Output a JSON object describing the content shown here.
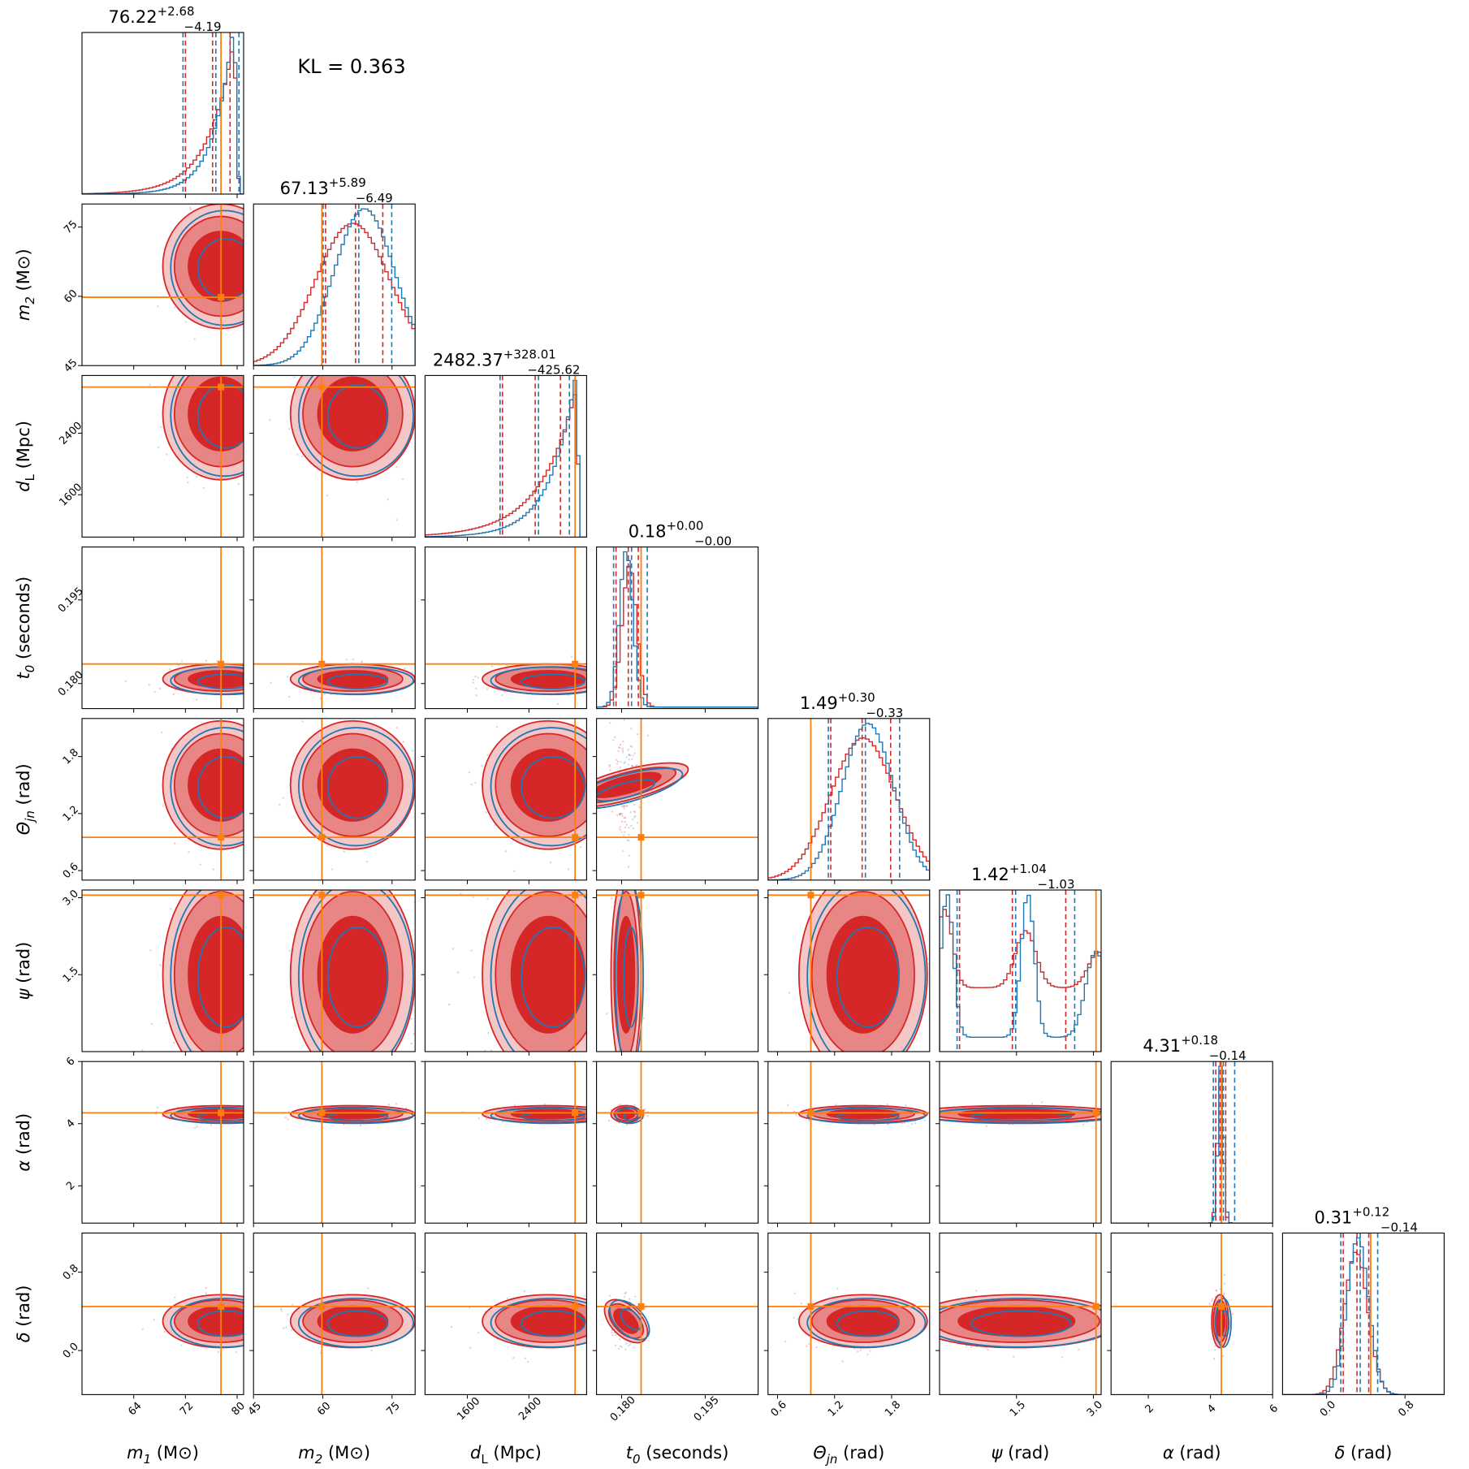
{
  "kl_label": "KL = 0.363",
  "colors": {
    "red": "#d62728",
    "blue": "#1f77b4",
    "orange": "#ff7f0e",
    "red_fill_light": "#f4c6c6",
    "red_fill_mid": "#e88686"
  },
  "chart_data": {
    "type": "corner",
    "series": [
      {
        "name": "",
        "color": "#d62728"
      },
      {
        "name": "",
        "color": "#1f77b4"
      }
    ],
    "parameters": [
      {
        "key": "m1",
        "label_sym": "m",
        "label_sub": "1",
        "label_unit": "(M⊙)",
        "range": [
          56,
          81
        ],
        "ticks": [
          "64",
          "72",
          "80"
        ],
        "tick_values": [
          64,
          72,
          80
        ],
        "truth": 77.5,
        "title_median": "76.22",
        "title_plus": "+2.68",
        "title_minus": "−4.19",
        "quantiles": [
          72.0,
          76.2,
          78.9
        ]
      },
      {
        "key": "m2",
        "label_sym": "m",
        "label_sub": "2",
        "label_unit": "(M⊙)",
        "range": [
          45,
          80
        ],
        "ticks": [
          "45",
          "60",
          "75"
        ],
        "tick_values": [
          45,
          60,
          75
        ],
        "truth": 59.8,
        "title_median": "67.13",
        "title_plus": "+5.89",
        "title_minus": "−6.49",
        "quantiles": [
          60.6,
          67.1,
          73.0
        ]
      },
      {
        "key": "dL",
        "label_sym": "d",
        "label_sub": "L",
        "label_unit": "(Mpc)",
        "range": [
          1050,
          3150
        ],
        "ticks": [
          "1600",
          "2400"
        ],
        "tick_values": [
          1600,
          2400
        ],
        "truth": 3000,
        "title_median": "2482.37",
        "title_plus": "+328.01",
        "title_minus": "−425.62",
        "quantiles": [
          2057,
          2482,
          2810
        ]
      },
      {
        "key": "t0",
        "label_sym": "t",
        "label_sub": "0",
        "label_unit": "(seconds)",
        "range": [
          0.1755,
          0.2045
        ],
        "ticks": [
          "0.180",
          "0.195"
        ],
        "tick_values": [
          0.18,
          0.195
        ],
        "truth": 0.1835,
        "title_median": "0.18",
        "title_plus": "+0.00",
        "title_minus": "−0.00",
        "quantiles": [
          0.179,
          0.1812,
          0.183
        ]
      },
      {
        "key": "theta",
        "label_sym": "Θ",
        "label_sub": "jn",
        "label_unit": "(rad)",
        "range": [
          0.5,
          2.2
        ],
        "ticks": [
          "0.6",
          "1.2",
          "1.8"
        ],
        "tick_values": [
          0.6,
          1.2,
          1.8
        ],
        "truth": 0.95,
        "title_median": "1.49",
        "title_plus": "+0.30",
        "title_minus": "−0.33",
        "quantiles": [
          1.16,
          1.49,
          1.79
        ]
      },
      {
        "key": "psi",
        "label_sym": "ψ",
        "label_sub": "",
        "label_unit": "(rad)",
        "range": [
          0,
          3.15
        ],
        "ticks": [
          "1.5",
          "3.0"
        ],
        "tick_values": [
          1.5,
          3.0
        ],
        "truth": 3.05,
        "title_median": "1.42",
        "title_plus": "+1.04",
        "title_minus": "−1.03",
        "quantiles": [
          0.39,
          1.42,
          2.46
        ]
      },
      {
        "key": "alpha",
        "label_sym": "α",
        "label_sub": "",
        "label_unit": "(rad)",
        "range": [
          0.8,
          6.0
        ],
        "ticks": [
          "2",
          "4",
          "6"
        ],
        "tick_values": [
          2,
          4,
          6
        ],
        "truth": 4.35,
        "title_median": "4.31",
        "title_plus": "+0.18",
        "title_minus": "−0.14",
        "quantiles": [
          4.17,
          4.31,
          4.49
        ]
      },
      {
        "key": "delta",
        "label_sym": "δ",
        "label_sub": "",
        "label_unit": "(rad)",
        "range": [
          -0.45,
          1.2
        ],
        "ticks": [
          "0.0",
          "0.8"
        ],
        "tick_values": [
          0.0,
          0.8
        ],
        "truth": 0.45,
        "title_median": "0.31",
        "title_plus": "+0.12",
        "title_minus": "−0.14",
        "quantiles": [
          0.17,
          0.31,
          0.43
        ]
      }
    ]
  }
}
